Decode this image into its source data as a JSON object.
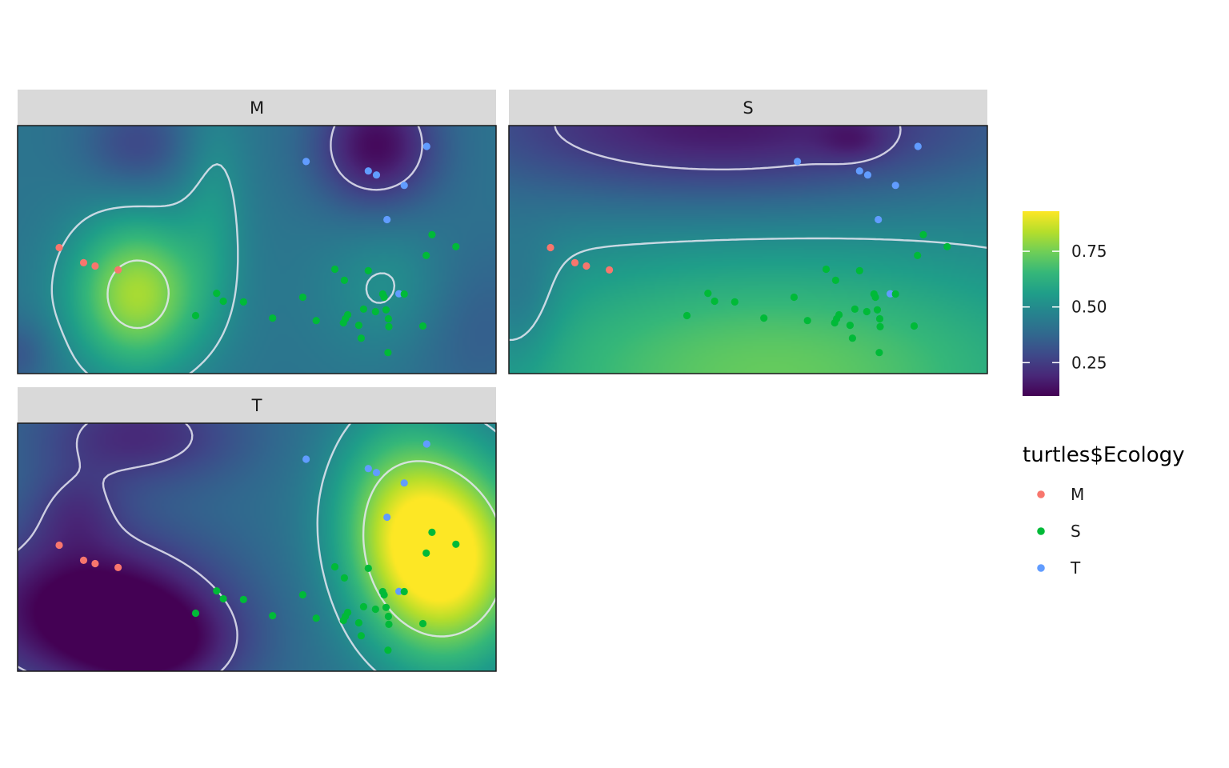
{
  "chart_data": {
    "type": "heatmap",
    "title": "",
    "xlabel": "",
    "ylabel": "",
    "facets": [
      {
        "label": "M",
        "field": {
          "base": 0.42,
          "bumps": [
            {
              "cx": 0.25,
              "cy": 0.68,
              "sx": 0.1,
              "sy": 0.22,
              "a": 0.4
            },
            {
              "cx": 0.75,
              "cy": 0.08,
              "sx": 0.09,
              "sy": 0.18,
              "a": -0.3
            },
            {
              "cx": 0.25,
              "cy": 0.08,
              "sx": 0.08,
              "sy": 0.14,
              "a": -0.14
            },
            {
              "cx": 0.41,
              "cy": 0.3,
              "sx": 0.05,
              "sy": 0.3,
              "a": 0.1
            },
            {
              "cx": 0.78,
              "cy": 0.65,
              "sx": 0.1,
              "sy": 0.2,
              "a": 0.1
            },
            {
              "cx": 0.95,
              "cy": 0.8,
              "sx": 0.1,
              "sy": 0.25,
              "a": -0.08
            },
            {
              "cx": 0.0,
              "cy": 0.92,
              "sx": 0.05,
              "sy": 0.1,
              "a": -0.1
            }
          ]
        }
      },
      {
        "label": "S",
        "field": {
          "base": 0.45,
          "bumps": [
            {
              "cx": 0.55,
              "cy": 1.0,
              "sx": 0.45,
              "sy": 0.35,
              "a": 0.28
            },
            {
              "cx": 0.45,
              "cy": 0.0,
              "sx": 0.4,
              "sy": 0.22,
              "a": -0.3
            },
            {
              "cx": 0.72,
              "cy": 0.06,
              "sx": 0.05,
              "sy": 0.06,
              "a": -0.08
            },
            {
              "cx": 0.02,
              "cy": 0.72,
              "sx": 0.06,
              "sy": 0.2,
              "a": -0.1
            }
          ]
        }
      },
      {
        "label": "T",
        "field": {
          "base": 0.4,
          "bumps": [
            {
              "cx": 0.9,
              "cy": 0.55,
              "sx": 0.12,
              "sy": 0.3,
              "a": 0.55
            },
            {
              "cx": 0.78,
              "cy": 0.35,
              "sx": 0.1,
              "sy": 0.3,
              "a": 0.22
            },
            {
              "cx": 0.15,
              "cy": 0.75,
              "sx": 0.18,
              "sy": 0.22,
              "a": -0.35
            },
            {
              "cx": 0.3,
              "cy": 0.9,
              "sx": 0.12,
              "sy": 0.15,
              "a": -0.2
            },
            {
              "cx": 0.25,
              "cy": 0.05,
              "sx": 0.15,
              "sy": 0.14,
              "a": -0.2
            },
            {
              "cx": 0.12,
              "cy": 0.35,
              "sx": 0.07,
              "sy": 0.12,
              "a": -0.12
            }
          ]
        }
      }
    ],
    "contour_levels": [
      0.25,
      0.5,
      0.75
    ],
    "colorbar": {
      "range": [
        0.1,
        0.93
      ],
      "ticks": [
        0.25,
        0.5,
        0.75
      ],
      "tick_labels": [
        "0.25",
        "0.50",
        "0.75"
      ],
      "palette": [
        "#440154",
        "#482878",
        "#3e4989",
        "#31688e",
        "#26828e",
        "#1f9e89",
        "#35b779",
        "#6ece58",
        "#b5de2b",
        "#fde725"
      ]
    },
    "points": [
      {
        "x": 0.087,
        "y": 0.492,
        "g": "M"
      },
      {
        "x": 0.138,
        "y": 0.553,
        "g": "M"
      },
      {
        "x": 0.162,
        "y": 0.566,
        "g": "M"
      },
      {
        "x": 0.21,
        "y": 0.582,
        "g": "M"
      },
      {
        "x": 0.603,
        "y": 0.145,
        "g": "T"
      },
      {
        "x": 0.733,
        "y": 0.183,
        "g": "T"
      },
      {
        "x": 0.75,
        "y": 0.199,
        "g": "T"
      },
      {
        "x": 0.808,
        "y": 0.241,
        "g": "T"
      },
      {
        "x": 0.855,
        "y": 0.084,
        "g": "T"
      },
      {
        "x": 0.772,
        "y": 0.379,
        "g": "T"
      },
      {
        "x": 0.797,
        "y": 0.678,
        "g": "T"
      },
      {
        "x": 0.866,
        "y": 0.44,
        "g": "S"
      },
      {
        "x": 0.916,
        "y": 0.488,
        "g": "S"
      },
      {
        "x": 0.854,
        "y": 0.524,
        "g": "S"
      },
      {
        "x": 0.663,
        "y": 0.579,
        "g": "S"
      },
      {
        "x": 0.683,
        "y": 0.624,
        "g": "S"
      },
      {
        "x": 0.733,
        "y": 0.585,
        "g": "S"
      },
      {
        "x": 0.763,
        "y": 0.679,
        "g": "S"
      },
      {
        "x": 0.766,
        "y": 0.692,
        "g": "S"
      },
      {
        "x": 0.808,
        "y": 0.679,
        "g": "S"
      },
      {
        "x": 0.416,
        "y": 0.676,
        "g": "S"
      },
      {
        "x": 0.43,
        "y": 0.708,
        "g": "S"
      },
      {
        "x": 0.472,
        "y": 0.711,
        "g": "S"
      },
      {
        "x": 0.372,
        "y": 0.766,
        "g": "S"
      },
      {
        "x": 0.533,
        "y": 0.776,
        "g": "S"
      },
      {
        "x": 0.596,
        "y": 0.692,
        "g": "S"
      },
      {
        "x": 0.624,
        "y": 0.786,
        "g": "S"
      },
      {
        "x": 0.723,
        "y": 0.74,
        "g": "S"
      },
      {
        "x": 0.748,
        "y": 0.75,
        "g": "S"
      },
      {
        "x": 0.77,
        "y": 0.743,
        "g": "S"
      },
      {
        "x": 0.69,
        "y": 0.763,
        "g": "S"
      },
      {
        "x": 0.685,
        "y": 0.779,
        "g": "S"
      },
      {
        "x": 0.681,
        "y": 0.795,
        "g": "S"
      },
      {
        "x": 0.713,
        "y": 0.805,
        "g": "S"
      },
      {
        "x": 0.775,
        "y": 0.779,
        "g": "S"
      },
      {
        "x": 0.776,
        "y": 0.811,
        "g": "S"
      },
      {
        "x": 0.847,
        "y": 0.808,
        "g": "S"
      },
      {
        "x": 0.718,
        "y": 0.857,
        "g": "S"
      },
      {
        "x": 0.774,
        "y": 0.915,
        "g": "S"
      }
    ],
    "legend": {
      "title": "turtles$Ecology",
      "placement": "right",
      "items": [
        {
          "label": "M",
          "color": "#f8766d"
        },
        {
          "label": "S",
          "color": "#00ba38"
        },
        {
          "label": "T",
          "color": "#619cff"
        }
      ]
    },
    "grid": false
  }
}
